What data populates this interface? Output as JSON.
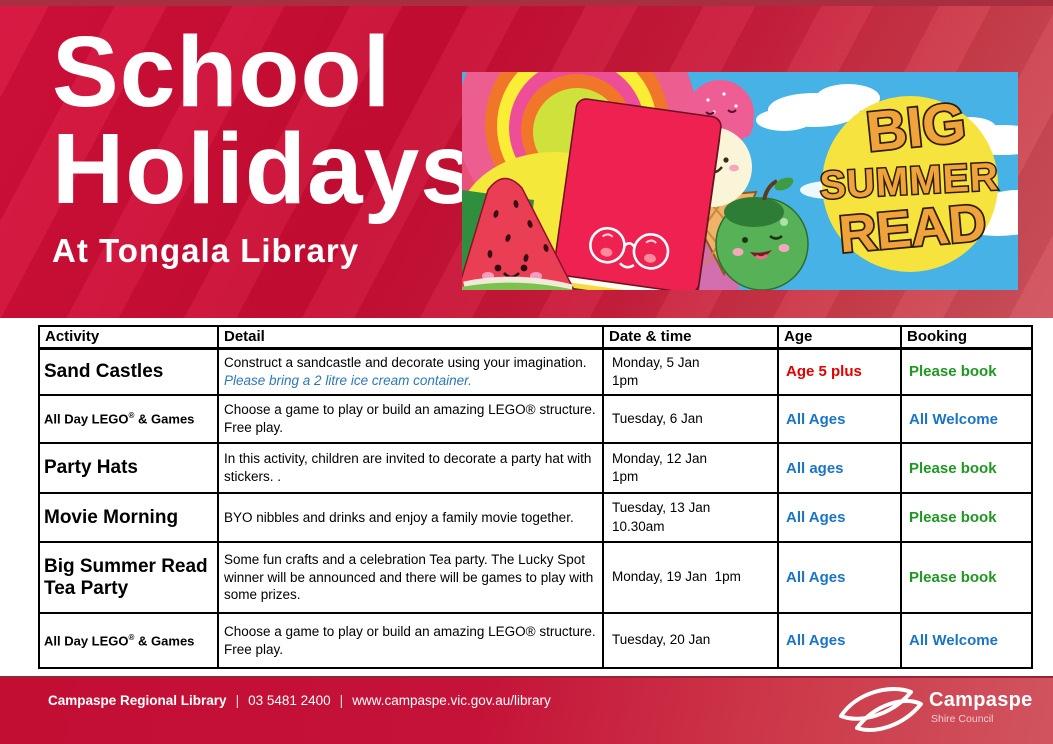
{
  "header": {
    "title_line1": "School",
    "title_line2": "Holidays",
    "subtitle": "At Tongala Library",
    "banner": {
      "words": [
        "BIG",
        "SUMMER",
        "READ"
      ]
    }
  },
  "table": {
    "columns": [
      "Activity",
      "Detail",
      "Date & time",
      "Age",
      "Booking"
    ],
    "rows": [
      {
        "height": 47,
        "activity_style": "large",
        "activity_parts": [
          {
            "text": "Sand Castles",
            "sup": false
          }
        ],
        "detail_parts": [
          {
            "text": "Construct a sandcastle and decorate using your imagination. ",
            "style": "plain"
          },
          {
            "text": "Please bring a 2 litre ice cream container.",
            "style": "italic_blue"
          }
        ],
        "date_lines": [
          "Monday, 5 Jan",
          "1pm"
        ],
        "age": {
          "text": "Age 5 plus",
          "color": "red"
        },
        "booking": {
          "text": "Please book",
          "color": "green"
        }
      },
      {
        "height": 48,
        "activity_style": "small",
        "activity_parts": [
          {
            "text": "All Day LEGO",
            "sup": false
          },
          {
            "text": "®",
            "sup": true
          },
          {
            "text": " & Games",
            "sup": false
          }
        ],
        "detail_parts": [
          {
            "text": "Choose a game to play or build an amazing LEGO® structure. Free play.",
            "style": "plain"
          }
        ],
        "date_lines": [
          "Tuesday, 6 Jan"
        ],
        "age": {
          "text": "All Ages",
          "color": "blue"
        },
        "booking": {
          "text": "All Welcome",
          "color": "blue"
        }
      },
      {
        "height": 50,
        "activity_style": "large",
        "activity_parts": [
          {
            "text": "Party Hats",
            "sup": false
          }
        ],
        "detail_parts": [
          {
            "text": "In this activity, children are invited to decorate a party hat with stickers. .",
            "style": "plain"
          }
        ],
        "date_lines": [
          "Monday, 12 Jan",
          "1pm"
        ],
        "age": {
          "text": "All ages",
          "color": "blue"
        },
        "booking": {
          "text": "Please book",
          "color": "green"
        }
      },
      {
        "height": 49,
        "activity_style": "large",
        "activity_parts": [
          {
            "text": "Movie Morning",
            "sup": false
          }
        ],
        "detail_parts": [
          {
            "text": "BYO nibbles and drinks and enjoy a family movie together.",
            "style": "plain"
          }
        ],
        "date_lines": [
          "Tuesday, 13 Jan",
          "10.30am"
        ],
        "age": {
          "text": "All Ages",
          "color": "blue"
        },
        "booking": {
          "text": "Please book",
          "color": "green"
        }
      },
      {
        "height": 71,
        "activity_style": "large",
        "activity_parts": [
          {
            "text": "Big Summer Read Tea Party",
            "sup": false
          }
        ],
        "detail_parts": [
          {
            "text": "Some fun crafts and a celebration Tea party. The Lucky Spot winner will be announced and there will be games to play with some prizes.",
            "style": "plain"
          }
        ],
        "date_lines": [
          "Monday, 19 Jan  1pm"
        ],
        "age": {
          "text": "All Ages",
          "color": "blue"
        },
        "booking": {
          "text": "Please book",
          "color": "green"
        }
      },
      {
        "height": 55,
        "activity_style": "small",
        "activity_parts": [
          {
            "text": "All Day LEGO",
            "sup": false
          },
          {
            "text": "®",
            "sup": true
          },
          {
            "text": " & Games",
            "sup": false
          }
        ],
        "detail_parts": [
          {
            "text": "Choose a game to play or build an amazing LEGO® structure. Free play.",
            "style": "plain"
          }
        ],
        "date_lines": [
          "Tuesday, 20 Jan"
        ],
        "age": {
          "text": "All Ages",
          "color": "blue"
        },
        "booking": {
          "text": "All Welcome",
          "color": "blue"
        }
      }
    ]
  },
  "footer": {
    "library_name": "Campaspe Regional Library",
    "separator": "|",
    "phone": "03 5481 2400",
    "website": "www.campaspe.vic.gov.au/library",
    "council_name": "Campaspe",
    "council_sub": "Shire Council"
  },
  "colors": {
    "red": "#e00000",
    "green": "#1f9722",
    "blue": "#1b74c5",
    "italic_blue": "#2d77b8",
    "header_red": "#c90d33",
    "sky_blue": "#47b2e5",
    "sun_yellow": "#f7e33d",
    "logo_orange": "#f0a33b"
  }
}
